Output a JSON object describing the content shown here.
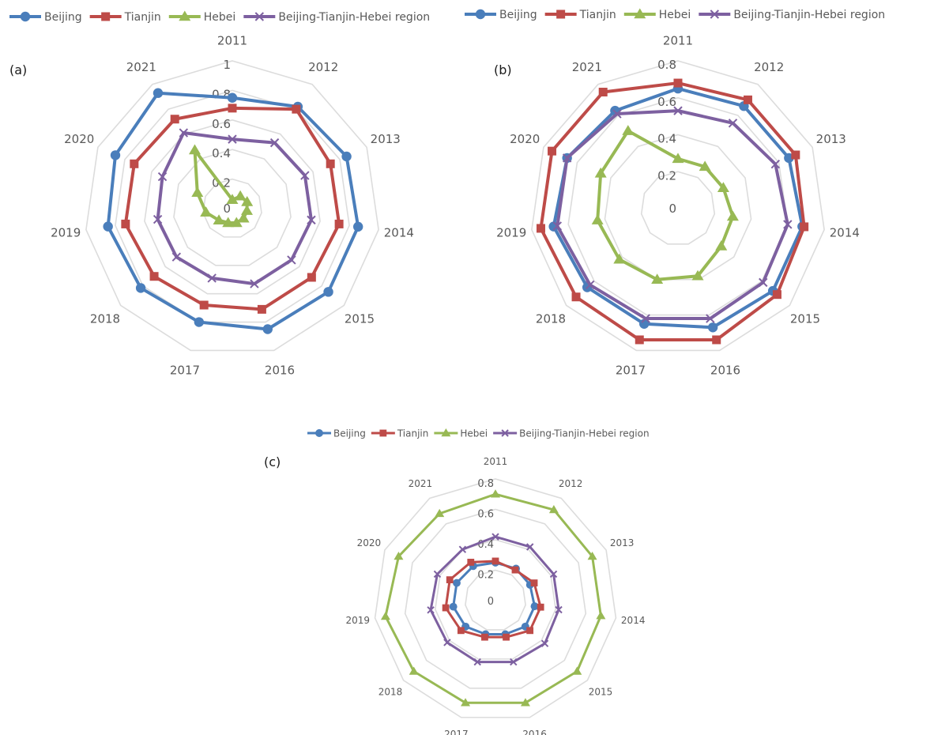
{
  "colors": {
    "grid": "#dcdcdc",
    "text": "#595959",
    "panel_label": "#1a1a1a"
  },
  "chart_data": [
    {
      "type": "radar",
      "panel_label": "(a)",
      "categories": [
        "2011",
        "2012",
        "2013",
        "2014",
        "2015",
        "2016",
        "2017",
        "2018",
        "2019",
        "2020",
        "2021"
      ],
      "r_ticks": [
        "0",
        "0.2",
        "0.4",
        "0.6",
        "0.8",
        "1"
      ],
      "r_range": [
        0,
        1
      ],
      "legend_position": "top",
      "series": [
        {
          "name": "Beijing",
          "color": "#4a7ebb",
          "marker": "circle",
          "values": [
            0.75,
            0.82,
            0.85,
            0.86,
            0.86,
            0.85,
            0.8,
            0.82,
            0.85,
            0.87,
            0.93
          ]
        },
        {
          "name": "Tianjin",
          "color": "#be4b48",
          "marker": "square",
          "values": [
            0.68,
            0.8,
            0.73,
            0.73,
            0.71,
            0.71,
            0.68,
            0.7,
            0.73,
            0.73,
            0.72
          ]
        },
        {
          "name": "Hebei",
          "color": "#98b954",
          "marker": "triangle",
          "values": [
            0.06,
            0.1,
            0.11,
            0.1,
            0.1,
            0.1,
            0.1,
            0.12,
            0.18,
            0.26,
            0.47
          ]
        },
        {
          "name": "Beijing-Tianjin-Hebei region",
          "color": "#7d60a0",
          "marker": "x",
          "values": [
            0.47,
            0.53,
            0.54,
            0.54,
            0.53,
            0.53,
            0.49,
            0.5,
            0.51,
            0.52,
            0.61
          ]
        }
      ]
    },
    {
      "type": "radar",
      "panel_label": "(b)",
      "categories": [
        "2011",
        "2012",
        "2013",
        "2014",
        "2015",
        "2016",
        "2017",
        "2018",
        "2019",
        "2020",
        "2021"
      ],
      "r_ticks": [
        "0",
        "0.2",
        "0.4",
        "0.6",
        "0.8"
      ],
      "r_range": [
        0,
        0.8
      ],
      "legend_position": "top",
      "series": [
        {
          "name": "Beijing",
          "color": "#4a7ebb",
          "marker": "circle",
          "values": [
            0.65,
            0.66,
            0.66,
            0.68,
            0.68,
            0.67,
            0.65,
            0.65,
            0.68,
            0.66,
            0.63
          ]
        },
        {
          "name": "Tianjin",
          "color": "#be4b48",
          "marker": "square",
          "values": [
            0.68,
            0.7,
            0.7,
            0.69,
            0.71,
            0.74,
            0.74,
            0.73,
            0.75,
            0.75,
            0.75
          ]
        },
        {
          "name": "Hebei",
          "color": "#98b954",
          "marker": "triangle",
          "values": [
            0.27,
            0.27,
            0.27,
            0.3,
            0.31,
            0.38,
            0.4,
            0.42,
            0.44,
            0.46,
            0.5
          ]
        },
        {
          "name": "Beijing-Tianjin-Hebei region",
          "color": "#7d60a0",
          "marker": "x",
          "values": [
            0.53,
            0.55,
            0.58,
            0.6,
            0.61,
            0.62,
            0.62,
            0.63,
            0.66,
            0.66,
            0.61
          ]
        }
      ]
    },
    {
      "type": "radar",
      "panel_label": "(c)",
      "categories": [
        "2011",
        "2012",
        "2013",
        "2014",
        "2015",
        "2016",
        "2017",
        "2018",
        "2019",
        "2020",
        "2021"
      ],
      "r_ticks": [
        "0",
        "0.2",
        "0.4",
        "0.6",
        "0.8"
      ],
      "r_range": [
        0,
        0.8
      ],
      "legend_position": "top",
      "series": [
        {
          "name": "Beijing",
          "color": "#4a7ebb",
          "marker": "circle",
          "values": [
            0.25,
            0.25,
            0.25,
            0.26,
            0.26,
            0.23,
            0.23,
            0.26,
            0.28,
            0.28,
            0.27
          ]
        },
        {
          "name": "Tianjin",
          "color": "#be4b48",
          "marker": "square",
          "values": [
            0.26,
            0.24,
            0.28,
            0.3,
            0.3,
            0.25,
            0.25,
            0.3,
            0.33,
            0.33,
            0.3
          ]
        },
        {
          "name": "Hebei",
          "color": "#98b954",
          "marker": "triangle",
          "values": [
            0.7,
            0.71,
            0.7,
            0.7,
            0.71,
            0.7,
            0.7,
            0.71,
            0.73,
            0.7,
            0.68
          ]
        },
        {
          "name": "Beijing-Tianjin-Hebei region",
          "color": "#7d60a0",
          "marker": "x",
          "values": [
            0.42,
            0.42,
            0.42,
            0.42,
            0.43,
            0.42,
            0.42,
            0.42,
            0.43,
            0.42,
            0.4
          ]
        }
      ]
    }
  ]
}
